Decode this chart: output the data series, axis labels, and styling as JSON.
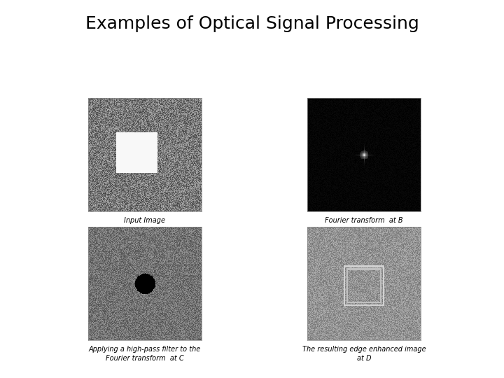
{
  "title": "Examples of Optical Signal Processing",
  "title_fontsize": 18,
  "title_fontweight": "normal",
  "background_color": "#ffffff",
  "captions": [
    "Input Image",
    "Fourier transform  at B",
    "Applying a high-pass filter to the\nFourier transform  at C",
    "The resulting edge enhanced image\nat D"
  ],
  "caption_fontsize": 7,
  "noise_seed": 42,
  "image_size": 200
}
